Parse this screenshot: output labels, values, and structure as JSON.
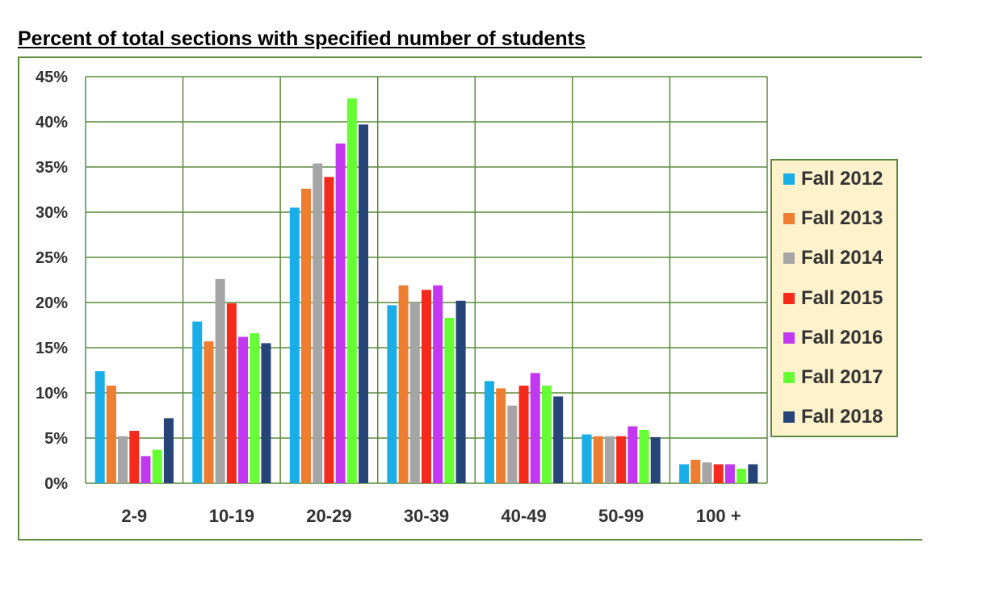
{
  "chart_data": {
    "type": "bar",
    "title": "Percent of total sections with specified number of students",
    "categories": [
      "2-9",
      "10-19",
      "20-29",
      "30-39",
      "40-49",
      "50-99",
      "100 +"
    ],
    "ylim": [
      0,
      45
    ],
    "yticks": [
      "0%",
      "5%",
      "10%",
      "15%",
      "20%",
      "25%",
      "30%",
      "35%",
      "40%",
      "45%"
    ],
    "grid": true,
    "legend_position": "right",
    "series": [
      {
        "name": "Fall 2012",
        "color": "#19aee8",
        "values": [
          12.4,
          17.9,
          30.5,
          19.7,
          11.3,
          5.4,
          2.1
        ]
      },
      {
        "name": "Fall 2013",
        "color": "#ed7d31",
        "values": [
          10.8,
          15.7,
          32.6,
          21.9,
          10.5,
          5.2,
          2.6
        ]
      },
      {
        "name": "Fall 2014",
        "color": "#a5a5a5",
        "values": [
          5.2,
          22.6,
          35.4,
          20.0,
          8.6,
          5.2,
          2.3
        ]
      },
      {
        "name": "Fall 2015",
        "color": "#f5291c",
        "values": [
          5.8,
          19.9,
          33.9,
          21.4,
          10.8,
          5.2,
          2.1
        ]
      },
      {
        "name": "Fall 2016",
        "color": "#c238f0",
        "values": [
          3.0,
          16.2,
          37.6,
          21.9,
          12.2,
          6.3,
          2.1
        ]
      },
      {
        "name": "Fall 2017",
        "color": "#66ff33",
        "values": [
          3.7,
          16.6,
          42.6,
          18.3,
          10.8,
          5.9,
          1.6
        ]
      },
      {
        "name": "Fall 2018",
        "color": "#264478",
        "values": [
          7.2,
          15.5,
          39.7,
          20.2,
          9.6,
          5.1,
          2.1
        ]
      }
    ]
  }
}
